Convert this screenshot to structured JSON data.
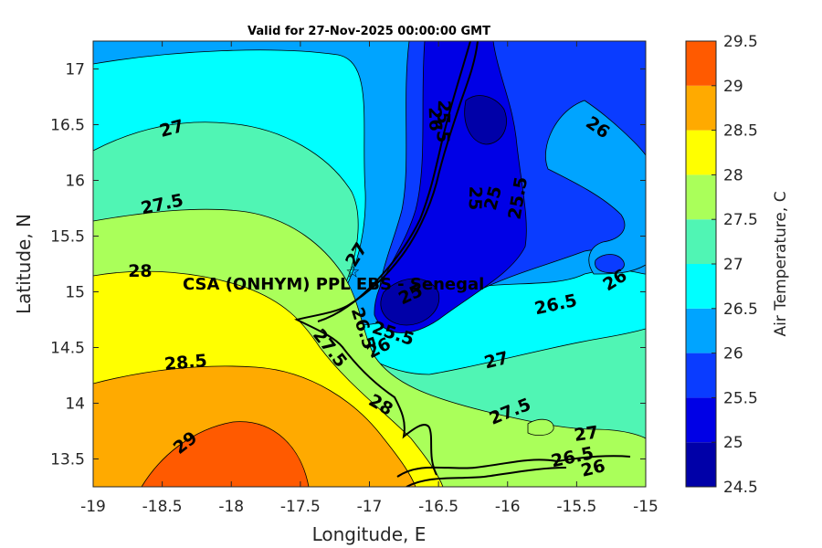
{
  "title": "Valid for 27-Nov-2025 00:00:00 GMT",
  "xlabel": "Longitude, E",
  "ylabel": "Latitude, N",
  "colorbar_label": "Air Temperature, C",
  "x_ticks": [
    "-19",
    "-18.5",
    "-18",
    "-17.5",
    "-17",
    "-16.5",
    "-16",
    "-15.5",
    "-15"
  ],
  "y_ticks": [
    "13.5",
    "14",
    "14.5",
    "15",
    "15.5",
    "16",
    "16.5",
    "17"
  ],
  "station": {
    "label": "CSA (ONHYM) PPL EBS  - Senegal",
    "lon": -17.12,
    "lat": 15.19,
    "marker": "star-icon"
  },
  "colorbar": {
    "ticks": [
      "24.5",
      "25",
      "25.5",
      "26",
      "26.5",
      "27",
      "27.5",
      "28",
      "28.5",
      "29",
      "29.5"
    ],
    "colors": [
      "#0000a8",
      "#0000e6",
      "#0a3cff",
      "#00a4ff",
      "#00ffff",
      "#50f5b4",
      "#aaff5a",
      "#ffff00",
      "#ffaa00",
      "#ff5a00",
      "#ff0000"
    ]
  },
  "chart_data": {
    "type": "heatmap",
    "title": "Valid for 27-Nov-2025 00:00:00 GMT",
    "xlabel": "Longitude, E",
    "ylabel": "Latitude, N",
    "xlim": [
      -19,
      -15
    ],
    "ylim": [
      13.25,
      17.25
    ],
    "levels": [
      24.5,
      25,
      25.5,
      26,
      26.5,
      27,
      27.5,
      28,
      28.5,
      29,
      29.5
    ],
    "colormap": "jet",
    "contour_labels": [
      {
        "text": "27",
        "lon": -18.43,
        "lat": 16.46,
        "rot": -15
      },
      {
        "text": "27.5",
        "lon": -18.5,
        "lat": 15.78,
        "rot": -12
      },
      {
        "text": "28",
        "lon": -18.66,
        "lat": 15.18,
        "rot": 0
      },
      {
        "text": "28.5",
        "lon": -18.33,
        "lat": 14.36,
        "rot": -5
      },
      {
        "text": "29",
        "lon": -18.33,
        "lat": 13.64,
        "rot": -38
      },
      {
        "text": "26",
        "lon": -16.53,
        "lat": 16.55,
        "rot": 88
      },
      {
        "text": "25.5",
        "lon": -16.47,
        "lat": 16.53,
        "rot": 92
      },
      {
        "text": "25",
        "lon": -16.24,
        "lat": 15.84,
        "rot": 92
      },
      {
        "text": "25",
        "lon": -16.1,
        "lat": 15.84,
        "rot": -75
      },
      {
        "text": "25.5",
        "lon": -15.92,
        "lat": 15.84,
        "rot": -80
      },
      {
        "text": "26",
        "lon": -15.35,
        "lat": 16.47,
        "rot": 35
      },
      {
        "text": "26",
        "lon": -15.22,
        "lat": 15.1,
        "rot": -32
      },
      {
        "text": "26.5",
        "lon": -15.65,
        "lat": 14.88,
        "rot": -12
      },
      {
        "text": "27",
        "lon": -16.08,
        "lat": 14.38,
        "rot": -14
      },
      {
        "text": "27.5",
        "lon": -15.98,
        "lat": 13.92,
        "rot": -22
      },
      {
        "text": "27",
        "lon": -15.43,
        "lat": 13.72,
        "rot": -8
      },
      {
        "text": "26.5",
        "lon": -15.53,
        "lat": 13.51,
        "rot": -12
      },
      {
        "text": "26",
        "lon": -15.38,
        "lat": 13.41,
        "rot": -14
      },
      {
        "text": "27",
        "lon": -17.09,
        "lat": 15.33,
        "rot": -58
      },
      {
        "text": "25",
        "lon": -16.7,
        "lat": 14.97,
        "rot": -25
      },
      {
        "text": "26.5",
        "lon": -17.05,
        "lat": 14.67,
        "rot": 72
      },
      {
        "text": "25.5",
        "lon": -16.83,
        "lat": 14.62,
        "rot": 18
      },
      {
        "text": "26",
        "lon": -16.93,
        "lat": 14.49,
        "rot": -28
      },
      {
        "text": "27.5",
        "lon": -17.29,
        "lat": 14.49,
        "rot": 52
      },
      {
        "text": "28",
        "lon": -16.92,
        "lat": 13.98,
        "rot": 30
      }
    ]
  }
}
